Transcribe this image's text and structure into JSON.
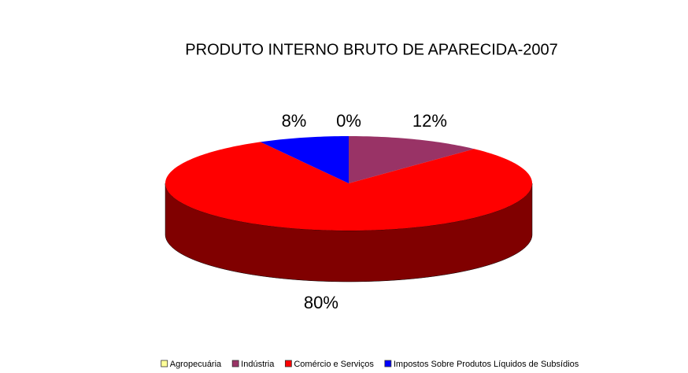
{
  "chart_data": {
    "type": "pie",
    "title": "PRODUTO INTERNO BRUTO DE APARECIDA-2007",
    "categories": [
      "Agropecuária",
      "Indústria",
      "Comércio e Serviços",
      "Impostos Sobre Produtos Líquidos de Subsídios"
    ],
    "values": [
      0,
      12,
      80,
      8
    ],
    "value_labels": [
      "0%",
      "12%",
      "80%",
      "8%"
    ],
    "colors": [
      "#ffff99",
      "#993366",
      "#ff0000",
      "#0000ff"
    ],
    "legend": "bottom"
  }
}
